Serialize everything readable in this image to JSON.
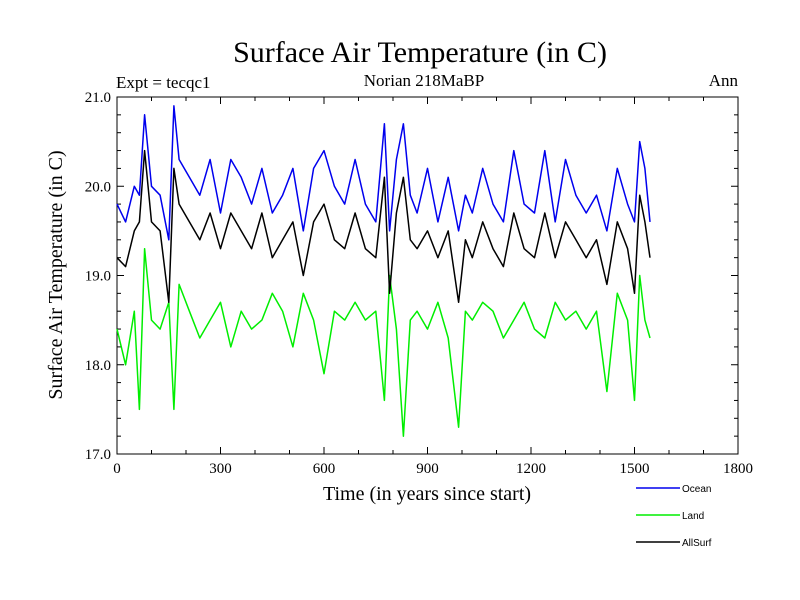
{
  "chart_data": {
    "type": "line",
    "title": "Surface Air Temperature (in C)",
    "subtitle_left": "Expt = tecqc1",
    "subtitle_center": "Norian 218MaBP",
    "subtitle_right": "Ann",
    "xlabel": "Time (in years since start)",
    "ylabel": "Surface Air Temperature (in C)",
    "xlim": [
      0,
      1800
    ],
    "ylim": [
      17.0,
      21.0
    ],
    "xticks": [
      0,
      300,
      600,
      900,
      1200,
      1500,
      1800
    ],
    "yticks": [
      17.0,
      18.0,
      19.0,
      20.0,
      21.0
    ],
    "ytick_labels": [
      "17.0",
      "18.0",
      "19.0",
      "20.0",
      "21.0"
    ],
    "legend_position": "bottom-right",
    "series": [
      {
        "name": "Ocean",
        "color": "#0000ee",
        "x": [
          0,
          25,
          50,
          65,
          80,
          100,
          125,
          150,
          165,
          180,
          210,
          240,
          270,
          300,
          330,
          360,
          390,
          420,
          450,
          480,
          510,
          540,
          570,
          600,
          630,
          660,
          690,
          720,
          750,
          775,
          790,
          810,
          830,
          850,
          870,
          900,
          930,
          960,
          990,
          1010,
          1030,
          1060,
          1090,
          1120,
          1150,
          1180,
          1210,
          1240,
          1270,
          1300,
          1330,
          1360,
          1390,
          1420,
          1450,
          1480,
          1500,
          1515,
          1530,
          1545
        ],
        "values": [
          19.8,
          19.6,
          20.0,
          19.9,
          20.8,
          20.0,
          19.9,
          19.4,
          20.9,
          20.3,
          20.1,
          19.9,
          20.3,
          19.7,
          20.3,
          20.1,
          19.8,
          20.2,
          19.7,
          19.9,
          20.2,
          19.5,
          20.2,
          20.4,
          20.0,
          19.8,
          20.3,
          19.8,
          19.6,
          20.7,
          19.5,
          20.3,
          20.7,
          19.9,
          19.7,
          20.2,
          19.6,
          20.1,
          19.5,
          19.9,
          19.7,
          20.2,
          19.8,
          19.6,
          20.4,
          19.8,
          19.7,
          20.4,
          19.6,
          20.3,
          19.9,
          19.7,
          19.9,
          19.5,
          20.2,
          19.8,
          19.6,
          20.5,
          20.2,
          19.6
        ]
      },
      {
        "name": "Land",
        "color": "#00ee00",
        "x": [
          0,
          25,
          50,
          65,
          80,
          100,
          125,
          150,
          165,
          180,
          210,
          240,
          270,
          300,
          330,
          360,
          390,
          420,
          450,
          480,
          510,
          540,
          570,
          600,
          630,
          660,
          690,
          720,
          750,
          775,
          790,
          810,
          830,
          850,
          870,
          900,
          930,
          960,
          990,
          1010,
          1030,
          1060,
          1090,
          1120,
          1150,
          1180,
          1210,
          1240,
          1270,
          1300,
          1330,
          1360,
          1390,
          1420,
          1450,
          1480,
          1500,
          1515,
          1530,
          1545
        ],
        "values": [
          18.4,
          18.0,
          18.6,
          17.5,
          19.3,
          18.5,
          18.4,
          18.7,
          17.5,
          18.9,
          18.6,
          18.3,
          18.5,
          18.7,
          18.2,
          18.6,
          18.4,
          18.5,
          18.8,
          18.6,
          18.2,
          18.8,
          18.5,
          17.9,
          18.6,
          18.5,
          18.7,
          18.5,
          18.6,
          17.6,
          19.0,
          18.4,
          17.2,
          18.5,
          18.6,
          18.4,
          18.7,
          18.3,
          17.3,
          18.6,
          18.5,
          18.7,
          18.6,
          18.3,
          18.5,
          18.7,
          18.4,
          18.3,
          18.7,
          18.5,
          18.6,
          18.4,
          18.6,
          17.7,
          18.8,
          18.5,
          17.6,
          19.0,
          18.5,
          18.3
        ]
      },
      {
        "name": "AllSurf",
        "color": "#000000",
        "x": [
          0,
          25,
          50,
          65,
          80,
          100,
          125,
          150,
          165,
          180,
          210,
          240,
          270,
          300,
          330,
          360,
          390,
          420,
          450,
          480,
          510,
          540,
          570,
          600,
          630,
          660,
          690,
          720,
          750,
          775,
          790,
          810,
          830,
          850,
          870,
          900,
          930,
          960,
          990,
          1010,
          1030,
          1060,
          1090,
          1120,
          1150,
          1180,
          1210,
          1240,
          1270,
          1300,
          1330,
          1360,
          1390,
          1420,
          1450,
          1480,
          1500,
          1515,
          1530,
          1545
        ],
        "values": [
          19.2,
          19.1,
          19.5,
          19.6,
          20.4,
          19.6,
          19.5,
          18.7,
          20.2,
          19.8,
          19.6,
          19.4,
          19.7,
          19.3,
          19.7,
          19.5,
          19.3,
          19.7,
          19.2,
          19.4,
          19.6,
          19.0,
          19.6,
          19.8,
          19.4,
          19.3,
          19.7,
          19.3,
          19.2,
          20.1,
          18.8,
          19.7,
          20.1,
          19.4,
          19.3,
          19.5,
          19.2,
          19.5,
          18.7,
          19.4,
          19.2,
          19.6,
          19.3,
          19.1,
          19.7,
          19.3,
          19.2,
          19.7,
          19.2,
          19.6,
          19.4,
          19.2,
          19.4,
          18.9,
          19.6,
          19.3,
          18.8,
          19.9,
          19.6,
          19.2
        ]
      }
    ]
  }
}
